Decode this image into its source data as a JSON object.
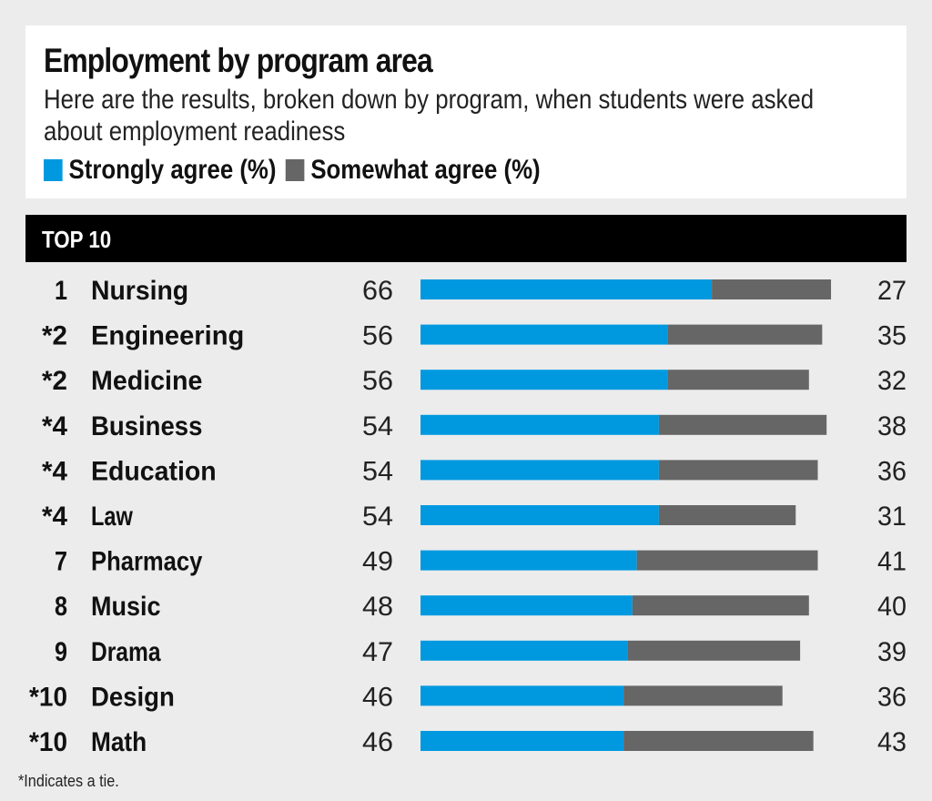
{
  "header": {
    "title": "Employment by program area",
    "subtitle": "Here are the results, broken down by program, when students were asked about employment readiness"
  },
  "section_label": "TOP 10",
  "footnote": "*Indicates a tie.",
  "colors": {
    "strongly": "#0099e0",
    "somewhat": "#666666"
  },
  "chart_data": {
    "type": "bar",
    "orientation": "horizontal",
    "stacked": true,
    "title": "Employment by program area",
    "subtitle": "Here are the results, broken down by program, when students were asked about employment readiness",
    "legend": [
      "Strongly agree (%)",
      "Somewhat agree (%)"
    ],
    "legend_placement": "top-left",
    "ranks": [
      "1",
      "*2",
      "*2",
      "*4",
      "*4",
      "*4",
      "7",
      "8",
      "9",
      "*10",
      "*10"
    ],
    "categories": [
      "Nursing",
      "Engineering",
      "Medicine",
      "Business",
      "Education",
      "Law",
      "Pharmacy",
      "Music",
      "Drama",
      "Design",
      "Math"
    ],
    "series": [
      {
        "name": "Strongly agree (%)",
        "values": [
          66,
          56,
          56,
          54,
          54,
          54,
          49,
          48,
          47,
          46,
          46
        ]
      },
      {
        "name": "Somewhat agree (%)",
        "values": [
          27,
          35,
          32,
          38,
          36,
          31,
          41,
          40,
          39,
          36,
          43
        ]
      }
    ]
  }
}
